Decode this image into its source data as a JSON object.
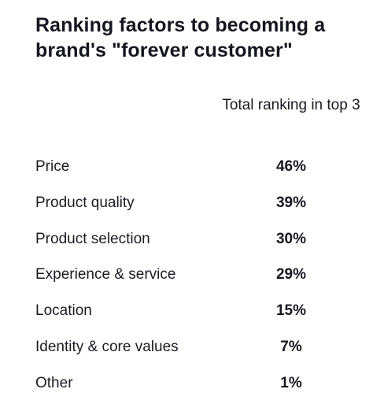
{
  "chart_data": {
    "type": "table",
    "title": "Ranking factors to becoming a brand's \"forever customer\"",
    "column_header": "Total ranking in top 3",
    "rows": [
      {
        "label": "Price",
        "value": "46%"
      },
      {
        "label": "Product quality",
        "value": "39%"
      },
      {
        "label": "Product selection",
        "value": "30%"
      },
      {
        "label": "Experience & service",
        "value": "29%"
      },
      {
        "label": "Location",
        "value": "15%"
      },
      {
        "label": "Identity & core values",
        "value": "7%"
      },
      {
        "label": "Other",
        "value": "1%"
      }
    ]
  }
}
